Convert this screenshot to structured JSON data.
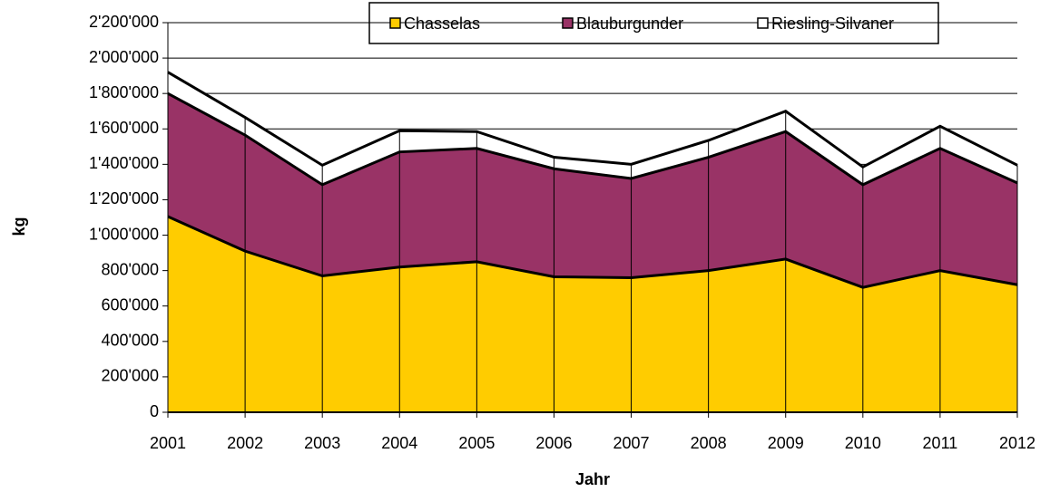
{
  "chart_data": {
    "type": "stacked_area",
    "x_label": "Jahr",
    "y_label": "kg",
    "categories": [
      "2001",
      "2002",
      "2003",
      "2004",
      "2005",
      "2006",
      "2007",
      "2008",
      "2009",
      "2010",
      "2011",
      "2012"
    ],
    "series": [
      {
        "name": "Chasselas",
        "color": "#ffcc00",
        "values": [
          1105000,
          910000,
          770000,
          820000,
          850000,
          765000,
          760000,
          800000,
          865000,
          705000,
          800000,
          720000
        ]
      },
      {
        "name": "Blauburgunder",
        "color": "#993366",
        "values": [
          695000,
          655000,
          515000,
          650000,
          640000,
          610000,
          560000,
          640000,
          720000,
          580000,
          690000,
          575000
        ]
      },
      {
        "name": "Riesling-Silvaner",
        "color": "#ffffff",
        "values": [
          120000,
          100000,
          110000,
          120000,
          95000,
          65000,
          80000,
          95000,
          115000,
          100000,
          125000,
          100000
        ]
      }
    ],
    "ylim": [
      0,
      2200000
    ],
    "yticks": [
      0,
      {
        "value": 200000,
        "label": "200'000"
      },
      {
        "value": 400000,
        "label": "400'000"
      },
      {
        "value": 600000,
        "label": "600'000"
      },
      {
        "value": 800000,
        "label": "800'000"
      },
      {
        "value": 1000000,
        "label": "1'000'000"
      },
      {
        "value": 1200000,
        "label": "1'200'000"
      },
      {
        "value": 1400000,
        "label": "1'400'000"
      },
      {
        "value": 1600000,
        "label": "1'600'000"
      },
      {
        "value": 1800000,
        "label": "1'800'000"
      },
      {
        "value": 2000000,
        "label": "2'000'000"
      },
      {
        "value": 2200000,
        "label": "2'200'000"
      }
    ],
    "grid": true,
    "legend": "top"
  }
}
